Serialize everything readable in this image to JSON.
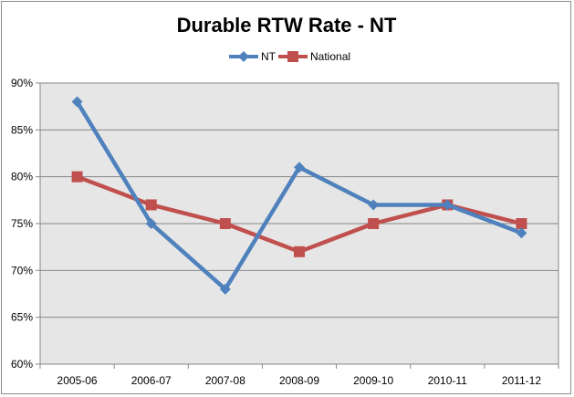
{
  "chart_data": {
    "type": "line",
    "title": "Durable RTW Rate - NT",
    "xlabel": "",
    "ylabel": "",
    "categories": [
      "2005-06",
      "2006-07",
      "2007-08",
      "2008-09",
      "2009-10",
      "2010-11",
      "2011-12"
    ],
    "series": [
      {
        "name": "NT",
        "values": [
          88,
          75,
          68,
          81,
          77,
          77,
          74
        ],
        "color": "#4f81bd",
        "marker": "diamond"
      },
      {
        "name": "National",
        "values": [
          80,
          77,
          75,
          72,
          75,
          77,
          75
        ],
        "color": "#c0504d",
        "marker": "square"
      }
    ],
    "ylim": [
      60,
      90
    ],
    "yticks": [
      "60%",
      "65%",
      "70%",
      "75%",
      "80%",
      "85%",
      "90%"
    ],
    "grid": true,
    "plot_background": "#e6e6e6",
    "legend_position": "top-center"
  }
}
